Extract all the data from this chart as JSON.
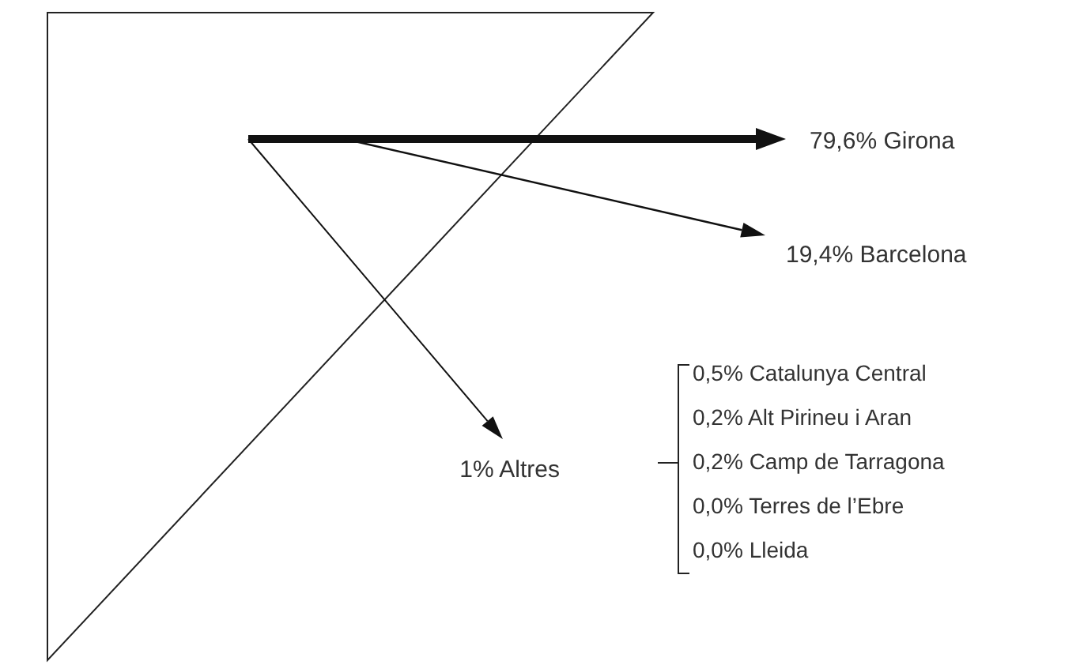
{
  "chart_data": {
    "type": "other",
    "categories": [
      "Girona",
      "Barcelona",
      "Altres",
      "Catalunya Central",
      "Alt Pirineu i Aran",
      "Camp de Tarragona",
      "Terres de l’Ebre",
      "Lleida"
    ],
    "values": [
      79.6,
      19.4,
      1,
      0.5,
      0.2,
      0.2,
      0.0,
      0.0
    ],
    "value_labels": [
      "79,6%",
      "19,4%",
      "1%",
      "0,5%",
      "0,2%",
      "0,2%",
      "0,0%",
      "0,0%"
    ]
  }
}
